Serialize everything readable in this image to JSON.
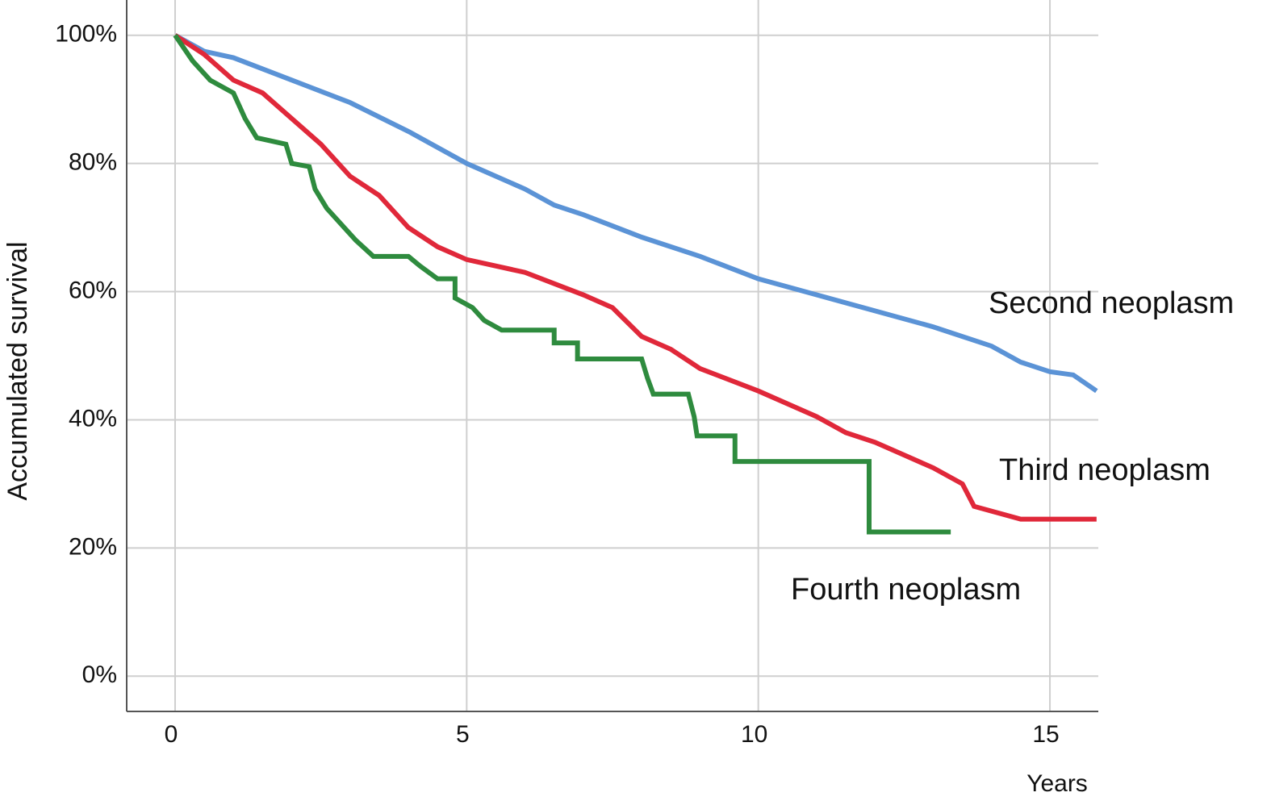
{
  "chart_data": {
    "type": "line",
    "step": true,
    "x_label": "Years",
    "y_label": "Accumulated survival",
    "xlim": [
      -0.83,
      15.83
    ],
    "ylim": [
      -5.5,
      105.5
    ],
    "xticks": [
      0,
      5,
      10,
      15
    ],
    "yticks": [
      {
        "value": 0,
        "label": "0%"
      },
      {
        "value": 20,
        "label": "20%"
      },
      {
        "value": 40,
        "label": "40%"
      },
      {
        "value": 60,
        "label": "60%"
      },
      {
        "value": 80,
        "label": "80%"
      },
      {
        "value": 100,
        "label": "100%"
      }
    ],
    "grid": true,
    "series": [
      {
        "name": "Second neoplasm",
        "color": "#5b93d6",
        "label_color": "#2e75b6",
        "x": [
          0,
          0.5,
          1,
          2,
          3,
          4,
          5,
          6,
          6.5,
          7,
          8,
          9,
          10,
          11,
          12,
          13,
          14,
          14.5,
          15,
          15.4,
          15.8
        ],
        "values": [
          100,
          97.5,
          96.5,
          93,
          89.5,
          85,
          80,
          76,
          73.5,
          72,
          68.5,
          65.5,
          62,
          59.5,
          57,
          54.5,
          51.5,
          49,
          47.5,
          47,
          44.5
        ]
      },
      {
        "name": "Third neoplasm",
        "color": "#e0283a",
        "label_color": "#c9266a",
        "x": [
          0,
          0.5,
          1,
          1.5,
          2,
          2.5,
          3,
          3.5,
          4,
          4.5,
          5,
          6,
          7,
          7.5,
          8,
          8.5,
          9,
          10,
          11,
          11.5,
          12,
          12.5,
          13,
          13.5,
          13.7,
          14.5,
          15.8
        ],
        "values": [
          100,
          97,
          93,
          91,
          87,
          83,
          78,
          75,
          70,
          67,
          65,
          63,
          59.5,
          57.5,
          53,
          51,
          48,
          44.5,
          40.5,
          38,
          36.5,
          34.5,
          32.5,
          30,
          26.5,
          24.5,
          24.5
        ]
      },
      {
        "name": "Fourth neoplasm",
        "color": "#2e8b3e",
        "label_color": "#2e8b3e",
        "x": [
          0,
          0.3,
          0.6,
          1,
          1.2,
          1.4,
          1.9,
          2,
          2.3,
          2.4,
          2.6,
          2.9,
          3.1,
          3.4,
          4,
          4.2,
          4.5,
          4.8,
          4.8,
          5.1,
          5.3,
          5.6,
          6.5,
          6.5,
          6.9,
          6.9,
          8,
          8.1,
          8.2,
          8.8,
          8.9,
          8.95,
          9.6,
          9.6,
          11.9,
          11.9,
          13.3
        ],
        "values": [
          100,
          96,
          93,
          91,
          87,
          84,
          83,
          80,
          79.5,
          76,
          73,
          70,
          68,
          65.5,
          65.5,
          64,
          62,
          62,
          59,
          57.5,
          55.5,
          54,
          54,
          52,
          52,
          49.5,
          49.5,
          46.5,
          44,
          44,
          40.5,
          37.5,
          37.5,
          33.5,
          33.5,
          22.5,
          22.5
        ]
      }
    ]
  }
}
